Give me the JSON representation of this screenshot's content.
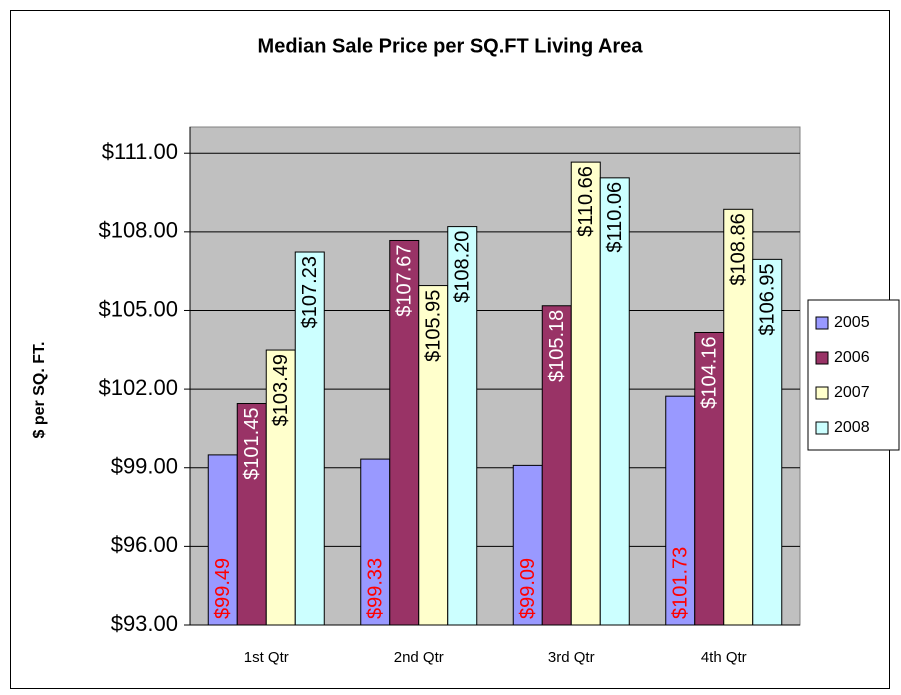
{
  "chart_data": {
    "type": "bar",
    "title": "Median Sale Price per SQ.FT Living Area",
    "y_label": "$ per SQ. FT.",
    "categories": [
      "1st Qtr",
      "2nd Qtr",
      "3rd Qtr",
      "4th Qtr"
    ],
    "series": [
      {
        "name": "2005",
        "color": "#9999ff",
        "label_color": "#ff0000",
        "label_position": "base",
        "values": [
          99.49,
          99.33,
          99.09,
          101.73
        ],
        "value_labels": [
          "$99.49",
          "$99.33",
          "$99.09",
          "$101.73"
        ]
      },
      {
        "name": "2006",
        "color": "#993366",
        "label_color": "#ffffff",
        "label_position": "top",
        "values": [
          101.45,
          107.67,
          105.18,
          104.16
        ],
        "value_labels": [
          "$101.45",
          "$107.67",
          "$105.18",
          "$104.16"
        ]
      },
      {
        "name": "2007",
        "color": "#ffffcc",
        "label_color": "#000000",
        "label_position": "top",
        "values": [
          103.49,
          105.95,
          110.66,
          108.86
        ],
        "value_labels": [
          "$103.49",
          "$105.95",
          "$110.66",
          "$108.86"
        ]
      },
      {
        "name": "2008",
        "color": "#ccffff",
        "label_color": "#000000",
        "label_position": "top",
        "values": [
          107.23,
          108.2,
          110.06,
          106.95
        ],
        "value_labels": [
          "$107.23",
          "$108.20",
          "$110.06",
          "$106.95"
        ]
      }
    ],
    "ylim": [
      93,
      112
    ],
    "yticks": [
      {
        "value": 93,
        "label": "$93.00"
      },
      {
        "value": 96,
        "label": "$96.00"
      },
      {
        "value": 99,
        "label": "$99.00"
      },
      {
        "value": 102,
        "label": "$102.00"
      },
      {
        "value": 105,
        "label": "$105.00"
      },
      {
        "value": 108,
        "label": "$108.00"
      },
      {
        "value": 111,
        "label": "$111.00"
      }
    ],
    "grid": true,
    "legend": "right",
    "plot_background": "#c0c0c0"
  }
}
